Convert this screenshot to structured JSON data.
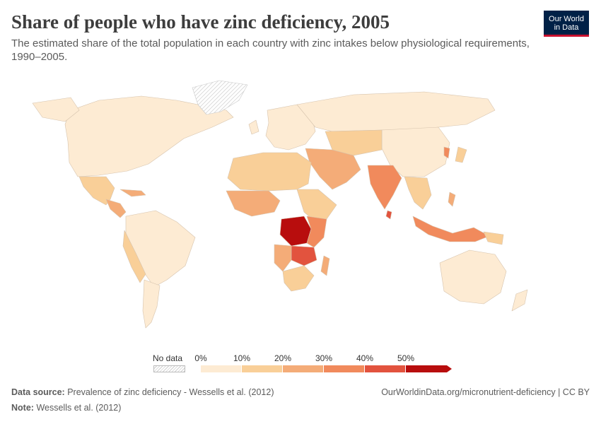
{
  "header": {
    "title": "Share of people who have zinc deficiency, 2005",
    "subtitle": "The estimated share of the total population in each country with zinc intakes below physiological requirements, 1990–2005.",
    "logo_line1": "Our World",
    "logo_line2": "in Data"
  },
  "legend": {
    "no_data_label": "No data",
    "ticks": [
      "0%",
      "10%",
      "20%",
      "30%",
      "40%",
      "50%"
    ],
    "bins": [
      {
        "from": 0,
        "to": 10,
        "color": "#fdebd3"
      },
      {
        "from": 10,
        "to": 20,
        "color": "#f9cf98"
      },
      {
        "from": 20,
        "to": 30,
        "color": "#f4ac78"
      },
      {
        "from": 30,
        "to": 40,
        "color": "#f18a5c"
      },
      {
        "from": 40,
        "to": 50,
        "color": "#e2533e"
      },
      {
        "from": 50,
        "to": null,
        "color": "#b80d0d"
      }
    ]
  },
  "footer": {
    "source_label": "Data source:",
    "source_text": "Prevalence of zinc deficiency - Wessells et al. (2012)",
    "note_label": "Note:",
    "note_text": "Wessells et al. (2012)",
    "url": "OurWorldinData.org/micronutrient-deficiency | CC BY"
  },
  "colors": {
    "ocean": "#ffffff",
    "border": "#d6c3ad",
    "no_data_hatch": "#cfcfcf",
    "logo_bg": "#002147",
    "logo_accent": "#c8102e"
  }
}
